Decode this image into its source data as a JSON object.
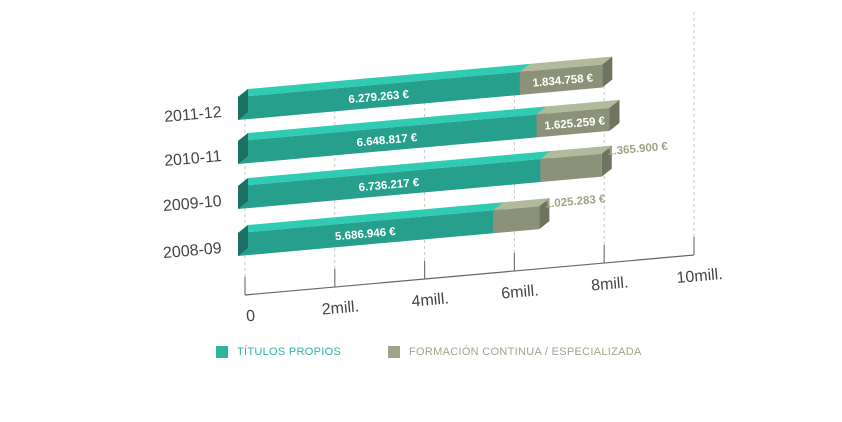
{
  "chart_data": {
    "type": "bar",
    "orientation": "horizontal",
    "stacked": true,
    "three_d": true,
    "categories": [
      "2011-12",
      "2010-11",
      "2009-10",
      "2008-09"
    ],
    "series": [
      {
        "name": "TÍTULOS PROPIOS",
        "color": "#2bb5a0",
        "values": [
          6279263,
          6648817,
          6736217,
          5686946
        ],
        "labels": [
          "6.279.263 €",
          "6.648.817 €",
          "6.736.217 €",
          "5.686.946 €"
        ]
      },
      {
        "name": "FORMACIÓN CONTINUA / ESPECIALIZADA",
        "color": "#9ea68a",
        "values": [
          1834758,
          1625259,
          1365900,
          1025283
        ],
        "labels": [
          "1.834.758 €",
          "1.625.259 €",
          "1.365.900 €",
          "1.025.283 €"
        ]
      }
    ],
    "xlim": [
      0,
      10000000
    ],
    "x_ticks": [
      0,
      2000000,
      4000000,
      6000000,
      8000000,
      10000000
    ],
    "x_tick_labels": [
      "0",
      "2mill.",
      "4mill.",
      "6mill.",
      "8mill.",
      "10mill."
    ],
    "grid": true,
    "legend_position": "bottom"
  }
}
